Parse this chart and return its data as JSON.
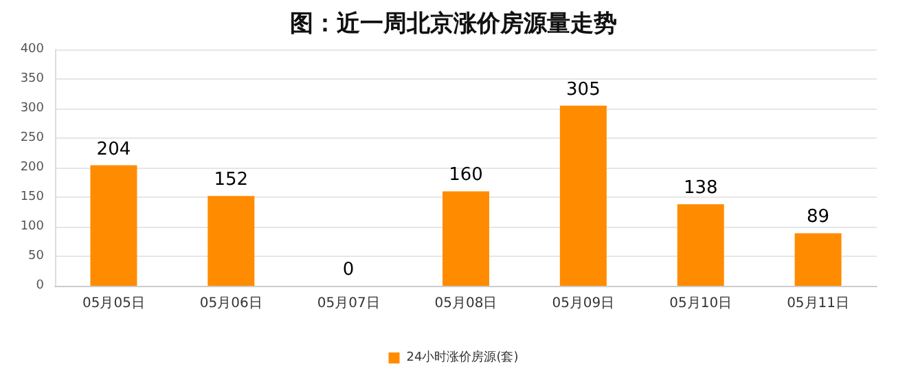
{
  "chart_data": {
    "type": "bar",
    "title": "图：近一周北京涨价房源量走势",
    "categories": [
      "05月05日",
      "05月06日",
      "05月07日",
      "05月08日",
      "05月09日",
      "05月10日",
      "05月11日"
    ],
    "series": [
      {
        "name": "24小时涨价房源(套)",
        "color": "#ff8c00",
        "values": [
          204,
          152,
          0,
          160,
          305,
          138,
          89
        ]
      }
    ],
    "ylim": [
      0,
      400
    ],
    "yticks": [
      0,
      50,
      100,
      150,
      200,
      250,
      300,
      350,
      400
    ],
    "grid": "y",
    "legend": "bottom",
    "data_labels": true
  }
}
